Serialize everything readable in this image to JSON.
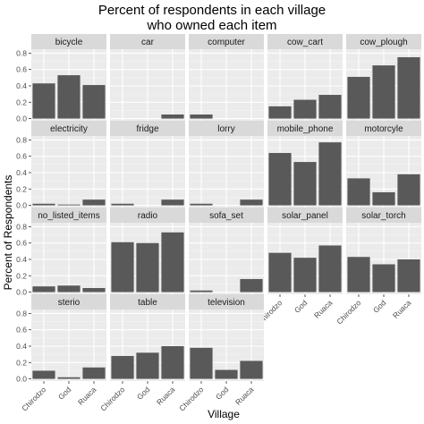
{
  "chart_data": {
    "type": "bar",
    "title_line1": "Percent of respondents in each village",
    "title_line2": "who owned each item",
    "xlabel": "Village",
    "ylabel": "Percent of Respondents",
    "categories": [
      "Chirodzo",
      "God",
      "Ruaca"
    ],
    "y_ticks": [
      "0.0",
      "0.2",
      "0.4",
      "0.6",
      "0.8"
    ],
    "ylim": [
      0,
      0.8
    ],
    "grid": true,
    "colors": {
      "bar": "#595959",
      "panel_bg": "#ebebeb",
      "strip_bg": "#d9d9d9",
      "grid_major": "#ffffff",
      "grid_minor": "#f5f5f5"
    },
    "facets": [
      {
        "name": "bicycle",
        "values": [
          0.43,
          0.53,
          0.41
        ]
      },
      {
        "name": "car",
        "values": [
          0.0,
          0.0,
          0.05
        ]
      },
      {
        "name": "computer",
        "values": [
          0.05,
          0.0,
          0.0
        ]
      },
      {
        "name": "cow_cart",
        "values": [
          0.15,
          0.23,
          0.29
        ]
      },
      {
        "name": "cow_plough",
        "values": [
          0.51,
          0.65,
          0.75
        ]
      },
      {
        "name": "electricity",
        "values": [
          0.02,
          0.01,
          0.07
        ]
      },
      {
        "name": "fridge",
        "values": [
          0.02,
          0.0,
          0.07
        ]
      },
      {
        "name": "lorry",
        "values": [
          0.02,
          0.0,
          0.07
        ]
      },
      {
        "name": "mobile_phone",
        "values": [
          0.64,
          0.53,
          0.77
        ]
      },
      {
        "name": "motorcyle",
        "values": [
          0.33,
          0.16,
          0.38
        ]
      },
      {
        "name": "no_listed_items",
        "values": [
          0.07,
          0.08,
          0.05
        ]
      },
      {
        "name": "radio",
        "values": [
          0.61,
          0.6,
          0.73
        ]
      },
      {
        "name": "sofa_set",
        "values": [
          0.02,
          0.0,
          0.16
        ]
      },
      {
        "name": "solar_panel",
        "values": [
          0.48,
          0.42,
          0.57
        ]
      },
      {
        "name": "solar_torch",
        "values": [
          0.43,
          0.34,
          0.4
        ]
      },
      {
        "name": "sterio",
        "values": [
          0.1,
          0.02,
          0.14
        ]
      },
      {
        "name": "table",
        "values": [
          0.28,
          0.32,
          0.4
        ]
      },
      {
        "name": "television",
        "values": [
          0.38,
          0.11,
          0.22
        ]
      }
    ]
  }
}
